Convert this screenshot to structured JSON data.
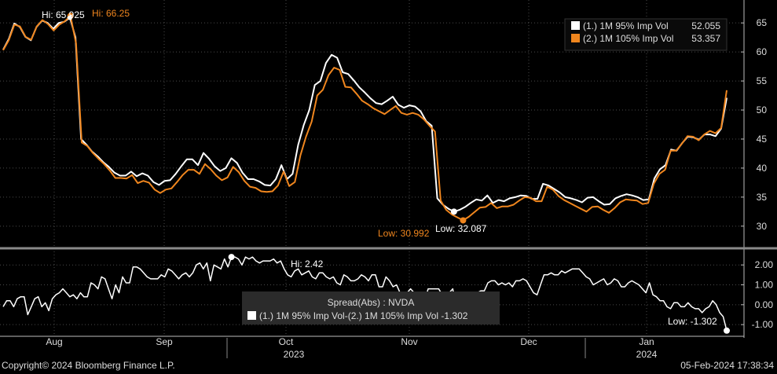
{
  "colors": {
    "background": "#000000",
    "series1": "#ffffff",
    "series2": "#f0861e",
    "spread": "#ffffff",
    "grid": "#4a4a4a",
    "divider": "#8a8a8a",
    "text": "#dddddd"
  },
  "footer": {
    "copyright": "Copyright© 2024 Bloomberg Finance L.P.",
    "timestamp": "05-Feb-2024 17:38:34"
  },
  "chart_data": [
    {
      "type": "line",
      "ylim": [
        27,
        68
      ],
      "yticks": [
        30,
        35,
        40,
        45,
        50,
        55,
        60,
        65
      ],
      "legend_position": "top-right",
      "legend": [
        {
          "label": "(1.) 1M 95% Imp Vol",
          "value": "52.055",
          "color": "#ffffff"
        },
        {
          "label": "(2.) 1M 105% Imp Vol",
          "value": "53.357",
          "color": "#f0861e"
        }
      ],
      "annotations": {
        "hi_series1": "Hi: 65.925",
        "hi_series2": "Hi: 66.25",
        "low_series1": "Low: 32.087",
        "low_series2": "Low: 30.992"
      },
      "series": [
        {
          "name": "(1.) 1M 95% Imp Vol",
          "values": [
            60.4,
            62.2,
            64.9,
            64.3,
            62.6,
            62,
            64.3,
            65.4,
            65,
            64,
            65,
            65.2,
            65.9,
            62.5,
            45,
            44,
            42.8,
            42,
            41,
            40.2,
            39.2,
            38.7,
            38.7,
            39.4,
            38.6,
            39.1,
            38.7,
            37.6,
            37.1,
            37.8,
            37.9,
            39,
            40.3,
            41.5,
            41.5,
            40.5,
            42.6,
            41.6,
            40.3,
            39.5,
            40,
            41.7,
            40.9,
            39.2,
            38.1,
            38.1,
            37.7,
            37.1,
            37,
            38.1,
            40.5,
            38.1,
            39,
            44,
            47.4,
            50,
            54.3,
            55,
            58.1,
            59.5,
            59,
            56.5,
            56.2,
            55.1,
            53.9,
            53,
            52,
            51.2,
            51,
            51.6,
            52.3,
            50.9,
            50.4,
            50.8,
            50.6,
            49.8,
            48.1,
            47.3,
            34.8,
            33.7,
            33,
            32.5,
            32.8,
            33.3,
            34,
            34.6,
            34.4,
            35.3,
            34,
            34.5,
            34.3,
            34.8,
            35,
            35.3,
            35.2,
            34.7,
            34.7,
            37.3,
            37,
            36.4,
            35.8,
            35,
            34.8,
            34.5,
            34.1,
            34.9,
            35,
            34.3,
            33.7,
            33.8,
            34.8,
            35.2,
            35.5,
            35.3,
            35,
            34.5,
            34.6,
            38.2,
            39.8,
            40.5,
            43.2,
            43,
            44.3,
            45.4,
            45.3,
            44.9,
            45.8,
            45.8,
            45.5,
            46.8,
            52.1
          ]
        },
        {
          "name": "(2.) 1M 105% Imp Vol",
          "values": [
            60.3,
            62,
            64.7,
            64.4,
            62.6,
            62.1,
            64.4,
            65.5,
            64.8,
            63.7,
            64.7,
            65.3,
            66.2,
            61.5,
            44.4,
            43.8,
            42.6,
            41.6,
            40.7,
            39.6,
            38.3,
            38.3,
            38.2,
            38.8,
            37.4,
            37.8,
            37.5,
            36.3,
            35.7,
            36.3,
            36.5,
            37.6,
            38.8,
            39.7,
            39.7,
            39,
            40.7,
            39.8,
            38.7,
            37.9,
            38.4,
            40.2,
            39.3,
            37.8,
            36.8,
            36.6,
            36,
            35.9,
            36,
            37,
            39.4,
            36.9,
            37.6,
            42.2,
            45.4,
            48,
            52.5,
            53.5,
            56,
            57.3,
            56.9,
            54,
            53.9,
            52.8,
            51.6,
            51,
            50.3,
            49.8,
            49.3,
            50,
            50.7,
            49.5,
            49.2,
            49.5,
            49.2,
            48.4,
            47.3,
            46.3,
            34.4,
            32.8,
            32,
            31.5,
            31,
            31.6,
            32.4,
            33.2,
            33.3,
            34,
            33.1,
            33.4,
            33.4,
            33.7,
            34.4,
            35,
            34.9,
            34.3,
            34.3,
            36.8,
            36.3,
            35.2,
            34.5,
            34,
            33.5,
            33,
            32.5,
            33.3,
            33.4,
            32.8,
            32.3,
            33.1,
            34.1,
            34.6,
            34.5,
            34.4,
            33.8,
            34,
            37.3,
            39,
            39.7,
            43,
            43,
            44.2,
            45.5,
            45.4,
            44.8,
            45.8,
            46.4,
            46,
            46.9,
            53.4
          ]
        }
      ]
    },
    {
      "type": "line",
      "ylim": [
        -1.35,
        2.6
      ],
      "yticks": [
        2.0,
        1.0,
        0.0,
        -1.0
      ],
      "ytick_labels": [
        "2.00",
        "1.00",
        "0.00",
        "-1.00"
      ],
      "legend_position": "bottom-center",
      "legend_title": "Spread(Abs) : NVDA",
      "legend": [
        {
          "label": "(1.) 1M 95% Imp Vol-(2.) 1M 105% Imp Vol",
          "value": "-1.302",
          "color": "#ffffff"
        }
      ],
      "annotations": {
        "hi": "Hi: 2.42",
        "low": "Low: -1.302"
      },
      "x_month_labels": [
        "Aug",
        "Sep",
        "Oct",
        "Nov",
        "Dec",
        "Jan"
      ],
      "x_year_labels": [
        "2023",
        "2024"
      ],
      "series": [
        {
          "name": "Spread(Abs) : NVDA",
          "values": [
            -0.1,
            0.2,
            0.2,
            -0.1,
            0.3,
            0.4,
            0.4,
            -0.5,
            -0.1,
            0.3,
            0.4,
            -0.1,
            0.1,
            -0.3,
            0.3,
            0.5,
            0.6,
            0.8,
            0.6,
            0.4,
            0.5,
            0.3,
            0.6,
            0.4,
            0.4,
            1.1,
            1,
            0.8,
            1.4,
            1.3,
            0.8,
            0.3,
            1,
            0.6,
            1.4,
            1.1,
            1.1,
            1.9,
            1.9,
            1.8,
            1.6,
            1.4,
            1.3,
            1.3,
            1.3,
            1.5,
            1.4,
            1.8,
            1.7,
            1.5,
            1.3,
            1.5,
            1.6,
            1.4,
            1.6,
            2,
            2.1,
            1.8,
            2.1,
            1.2,
            2,
            1.9,
            1.8,
            2.3,
            1.9,
            2.4,
            2.4,
            2.3,
            2,
            2.4,
            2.3,
            2.4,
            2.2,
            2.1,
            2.2,
            2.2,
            2.2,
            2.3,
            2.1,
            2.2,
            1.8,
            1.5,
            1.4,
            1.7,
            1.8,
            1.5,
            1.6,
            1.7,
            1.4,
            1.3,
            1.6,
            1.6,
            1.4,
            1.3,
            1.4,
            1.1,
            1,
            1.5,
            1.4,
            1.2,
            1.2,
            1.3,
            1.5,
            1.4,
            1.2,
            1.5,
            1.5,
            0.9,
            0.9,
            1.4,
            1.2,
            0.9,
            1,
            0.6,
            0.5,
            0.6,
            0.8,
            0.6,
            0.6,
            0.5,
            0.2,
            0.8,
            0.8,
            0.8,
            0.8,
            0.5,
            0.4,
            0.6,
            0.8,
            -0.2,
            0.2,
            0.2,
            0.5,
            0.6,
            0.4,
            0.6,
            0.7,
            0.7,
            1.1,
            1.2,
            1.2,
            1,
            1.1,
            1,
            1.1,
            0.9,
            1.2,
            1.2,
            1.3,
            1.2,
            0.9,
            0.6,
            0.5,
            1,
            1.5,
            1.5,
            1.6,
            1.5,
            1.5,
            1.7,
            1.6,
            1.7,
            1.8,
            1.8,
            1.8,
            1.6,
            1.4,
            1.3,
            1,
            1.1,
            1.2,
            1.3,
            1,
            1.1,
            1.3,
            1.2,
            0.9,
            0.9,
            1.1,
            1.2,
            1.1,
            1,
            0.8,
            0.6,
            1.1,
            0.5,
            0.4,
            0.2,
            0.2,
            -0.1,
            -0.2,
            0.1,
            0.1,
            -0.1,
            -0.1,
            0.1,
            -0.1,
            -0.2,
            -0.2,
            -0.4,
            -0.2,
            -0.1,
            0.2,
            0,
            -0.4,
            -0.6,
            -1.302
          ]
        }
      ]
    }
  ]
}
